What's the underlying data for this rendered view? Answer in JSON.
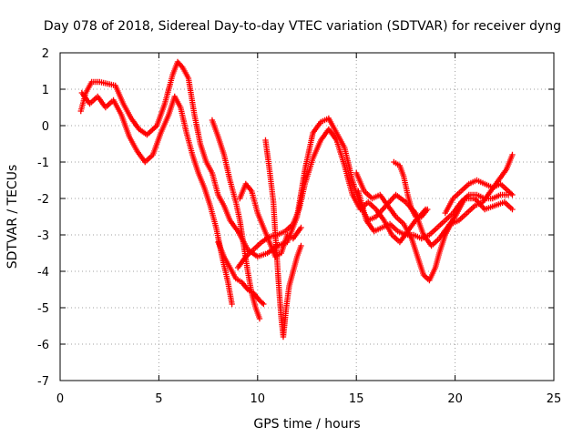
{
  "chart_data": {
    "type": "scatter",
    "title": "Day 078 of 2018, Sidereal Day-to-day VTEC variation (SDTVAR) for receiver dyng",
    "xlabel": "GPS time / hours",
    "ylabel": "SDTVAR / TECUs",
    "xlim": [
      0,
      25
    ],
    "ylim": [
      -7,
      2
    ],
    "xticks": [
      0,
      5,
      10,
      15,
      20,
      25
    ],
    "yticks": [
      -7,
      -6,
      -5,
      -4,
      -3,
      -2,
      -1,
      0,
      1,
      2
    ],
    "grid": true,
    "marker": "plus",
    "color": "#ff0000",
    "series": [
      {
        "points": [
          [
            1.05,
            0.4
          ],
          [
            1.3,
            0.9
          ],
          [
            1.6,
            1.2
          ],
          [
            2.0,
            1.2
          ],
          [
            2.4,
            1.15
          ],
          [
            2.8,
            1.1
          ],
          [
            3.2,
            0.6
          ],
          [
            3.6,
            0.2
          ],
          [
            4.0,
            -0.1
          ],
          [
            4.4,
            -0.25
          ],
          [
            4.9,
            0.0
          ],
          [
            5.3,
            0.6
          ],
          [
            5.7,
            1.4
          ],
          [
            5.95,
            1.75
          ],
          [
            6.2,
            1.6
          ],
          [
            6.5,
            1.3
          ],
          [
            6.8,
            0.3
          ],
          [
            7.1,
            -0.5
          ],
          [
            7.4,
            -1.0
          ],
          [
            7.7,
            -1.3
          ],
          [
            8.0,
            -1.9
          ],
          [
            8.3,
            -2.2
          ],
          [
            8.6,
            -2.6
          ],
          [
            9.0,
            -2.9
          ],
          [
            9.5,
            -3.4
          ],
          [
            10.0,
            -3.6
          ],
          [
            10.5,
            -3.5
          ],
          [
            11.0,
            -3.3
          ],
          [
            11.5,
            -3.2
          ],
          [
            12.0,
            -2.5
          ],
          [
            12.4,
            -1.2
          ],
          [
            12.8,
            -0.2
          ],
          [
            13.2,
            0.1
          ],
          [
            13.6,
            0.2
          ],
          [
            14.0,
            -0.2
          ],
          [
            14.4,
            -0.6
          ],
          [
            14.8,
            -1.5
          ],
          [
            15.2,
            -2.2
          ],
          [
            15.6,
            -2.6
          ],
          [
            16.0,
            -2.5
          ],
          [
            16.5,
            -2.2
          ],
          [
            17.0,
            -1.9
          ],
          [
            17.5,
            -2.1
          ],
          [
            18.0,
            -2.4
          ],
          [
            18.4,
            -3.0
          ],
          [
            18.8,
            -3.3
          ],
          [
            19.2,
            -3.1
          ],
          [
            19.6,
            -2.8
          ],
          [
            20.0,
            -2.5
          ],
          [
            20.5,
            -2.0
          ],
          [
            21.0,
            -2.0
          ],
          [
            21.5,
            -2.3
          ],
          [
            22.0,
            -2.2
          ],
          [
            22.5,
            -2.1
          ],
          [
            22.9,
            -2.3
          ]
        ]
      },
      {
        "points": [
          [
            1.1,
            0.9
          ],
          [
            1.5,
            0.6
          ],
          [
            1.9,
            0.8
          ],
          [
            2.3,
            0.5
          ],
          [
            2.7,
            0.7
          ],
          [
            3.1,
            0.3
          ],
          [
            3.5,
            -0.3
          ],
          [
            3.9,
            -0.7
          ],
          [
            4.3,
            -1.0
          ],
          [
            4.7,
            -0.8
          ],
          [
            5.1,
            -0.2
          ],
          [
            5.5,
            0.3
          ],
          [
            5.8,
            0.8
          ],
          [
            6.1,
            0.5
          ],
          [
            6.4,
            -0.2
          ],
          [
            6.7,
            -0.8
          ],
          [
            7.0,
            -1.3
          ],
          [
            7.3,
            -1.7
          ],
          [
            7.6,
            -2.2
          ],
          [
            7.9,
            -2.8
          ],
          [
            8.2,
            -3.6
          ],
          [
            8.5,
            -4.3
          ],
          [
            8.7,
            -4.9
          ]
        ]
      },
      {
        "points": [
          [
            7.7,
            0.15
          ],
          [
            8.0,
            -0.3
          ],
          [
            8.3,
            -0.8
          ],
          [
            8.6,
            -1.5
          ],
          [
            8.9,
            -2.1
          ],
          [
            9.1,
            -2.6
          ],
          [
            9.3,
            -3.3
          ],
          [
            9.5,
            -4.0
          ],
          [
            9.7,
            -4.6
          ],
          [
            9.9,
            -5.0
          ],
          [
            10.1,
            -5.3
          ]
        ]
      },
      {
        "points": [
          [
            9.1,
            -2.0
          ],
          [
            9.4,
            -1.6
          ],
          [
            9.7,
            -1.8
          ],
          [
            10.0,
            -2.4
          ],
          [
            10.3,
            -2.8
          ],
          [
            10.6,
            -3.2
          ],
          [
            10.9,
            -3.6
          ],
          [
            11.2,
            -3.5
          ],
          [
            11.5,
            -3.0
          ],
          [
            11.8,
            -3.1
          ],
          [
            12.2,
            -2.8
          ]
        ]
      },
      {
        "points": [
          [
            10.4,
            -0.4
          ],
          [
            10.6,
            -1.2
          ],
          [
            10.8,
            -2.1
          ],
          [
            10.9,
            -3.0
          ],
          [
            11.0,
            -3.8
          ],
          [
            11.1,
            -4.6
          ],
          [
            11.2,
            -5.3
          ],
          [
            11.3,
            -5.8
          ],
          [
            11.45,
            -5.0
          ],
          [
            11.6,
            -4.4
          ],
          [
            11.8,
            -4.0
          ],
          [
            12.0,
            -3.6
          ],
          [
            12.2,
            -3.3
          ]
        ]
      },
      {
        "points": [
          [
            8.0,
            -3.2
          ],
          [
            8.3,
            -3.6
          ],
          [
            8.6,
            -3.9
          ],
          [
            8.9,
            -4.2
          ],
          [
            9.2,
            -4.3
          ],
          [
            9.5,
            -4.5
          ],
          [
            9.8,
            -4.6
          ],
          [
            10.1,
            -4.8
          ],
          [
            10.3,
            -4.9
          ]
        ]
      },
      {
        "points": [
          [
            9.0,
            -3.9
          ],
          [
            9.4,
            -3.6
          ],
          [
            9.8,
            -3.4
          ],
          [
            10.2,
            -3.2
          ],
          [
            10.6,
            -3.05
          ],
          [
            11.0,
            -3.0
          ],
          [
            11.4,
            -2.9
          ],
          [
            11.8,
            -2.7
          ],
          [
            12.1,
            -2.3
          ],
          [
            12.4,
            -1.6
          ],
          [
            12.8,
            -0.9
          ],
          [
            13.2,
            -0.4
          ],
          [
            13.6,
            -0.1
          ],
          [
            14.0,
            -0.4
          ],
          [
            14.4,
            -1.1
          ],
          [
            14.8,
            -1.9
          ],
          [
            15.2,
            -2.3
          ],
          [
            15.6,
            -2.1
          ],
          [
            16.0,
            -2.3
          ],
          [
            16.4,
            -2.6
          ],
          [
            16.8,
            -3.0
          ],
          [
            17.2,
            -3.2
          ],
          [
            17.6,
            -2.9
          ],
          [
            18.0,
            -2.6
          ],
          [
            18.2,
            -2.5
          ],
          [
            18.5,
            -2.3
          ]
        ]
      },
      {
        "points": [
          [
            15.0,
            -1.3
          ],
          [
            15.4,
            -1.8
          ],
          [
            15.8,
            -2.0
          ],
          [
            16.2,
            -1.9
          ],
          [
            16.6,
            -2.2
          ],
          [
            17.0,
            -2.5
          ],
          [
            17.4,
            -2.7
          ],
          [
            17.8,
            -3.1
          ],
          [
            18.1,
            -3.6
          ],
          [
            18.4,
            -4.1
          ],
          [
            18.7,
            -4.25
          ],
          [
            19.0,
            -3.9
          ],
          [
            19.2,
            -3.5
          ],
          [
            19.5,
            -3.0
          ],
          [
            19.8,
            -2.7
          ],
          [
            20.2,
            -2.6
          ],
          [
            20.6,
            -2.4
          ],
          [
            21.0,
            -2.2
          ],
          [
            21.4,
            -2.1
          ],
          [
            21.8,
            -1.8
          ],
          [
            22.2,
            -1.5
          ],
          [
            22.6,
            -1.2
          ],
          [
            22.9,
            -0.8
          ]
        ]
      },
      {
        "points": [
          [
            15.1,
            -1.8
          ],
          [
            15.5,
            -2.6
          ],
          [
            15.9,
            -2.9
          ],
          [
            16.3,
            -2.8
          ],
          [
            16.7,
            -2.7
          ],
          [
            17.1,
            -2.9
          ],
          [
            17.5,
            -3.0
          ],
          [
            17.9,
            -3.0
          ],
          [
            18.3,
            -3.1
          ],
          [
            18.7,
            -3.0
          ],
          [
            19.1,
            -2.8
          ],
          [
            19.5,
            -2.6
          ],
          [
            19.9,
            -2.4
          ],
          [
            20.3,
            -2.1
          ],
          [
            20.7,
            -1.9
          ],
          [
            21.1,
            -1.9
          ],
          [
            21.5,
            -2.0
          ],
          [
            21.9,
            -2.0
          ],
          [
            22.3,
            -1.9
          ],
          [
            22.7,
            -1.9
          ]
        ]
      },
      {
        "points": [
          [
            16.9,
            -1.0
          ],
          [
            17.2,
            -1.1
          ],
          [
            17.4,
            -1.4
          ],
          [
            17.6,
            -1.9
          ],
          [
            17.8,
            -2.3
          ],
          [
            18.0,
            -2.5
          ],
          [
            18.3,
            -2.5
          ],
          [
            18.6,
            -2.3
          ]
        ]
      },
      {
        "points": [
          [
            19.5,
            -2.4
          ],
          [
            19.9,
            -2.0
          ],
          [
            20.3,
            -1.8
          ],
          [
            20.7,
            -1.6
          ],
          [
            21.1,
            -1.5
          ],
          [
            21.5,
            -1.6
          ],
          [
            21.9,
            -1.7
          ],
          [
            22.3,
            -1.6
          ],
          [
            22.7,
            -1.8
          ],
          [
            22.9,
            -1.9
          ]
        ]
      }
    ]
  }
}
